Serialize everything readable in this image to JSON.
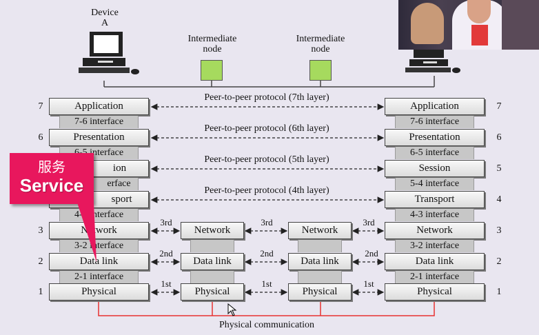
{
  "device_a": {
    "line1": "Device",
    "line2": "A"
  },
  "intermediate_left": {
    "line1": "Intermediate",
    "line2": "node"
  },
  "intermediate_right": {
    "line1": "Intermediate",
    "line2": "node"
  },
  "layers_left": [
    "Application",
    "Presentation",
    "ion",
    "sport",
    "Network",
    "Data link",
    "Physical"
  ],
  "layers_right": [
    "Application",
    "Presentation",
    "Session",
    "Transport",
    "Network",
    "Data link",
    "Physical"
  ],
  "layers_mid": [
    "Network",
    "Data link",
    "Physical"
  ],
  "interfaces_left": [
    "7-6 interface",
    "6-5 interface",
    "erface",
    "4-3 interface",
    "3-2 interface",
    "2-1 interface"
  ],
  "interfaces_right": [
    "7-6 interface",
    "6-5 interface",
    "5-4 interface",
    "4-3 interface",
    "3-2 interface",
    "2-1 interface"
  ],
  "layer_numbers": [
    "7",
    "6",
    "5",
    "4",
    "3",
    "2",
    "1"
  ],
  "protocols": [
    "Peer-to-peer protocol (7th layer)",
    "Peer-to-peer protocol (6th layer)",
    "Peer-to-peer protocol (5th layer)",
    "Peer-to-peer protocol (4th layer)"
  ],
  "hops": [
    "3rd",
    "2nd",
    "1st"
  ],
  "physical_communication": "Physical communication",
  "callout": {
    "zh": "服务",
    "en": "Service",
    "color": "#e8175d"
  },
  "colors": {
    "node": "#a6da5e",
    "link": "#e83030"
  }
}
